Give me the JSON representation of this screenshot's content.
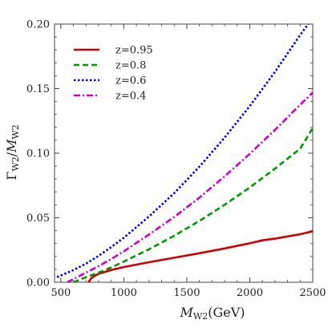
{
  "chart_data": {
    "type": "line",
    "title": "",
    "xlabel_main": "M",
    "xlabel_sub": "W2",
    "xlabel_unit": "(GeV)",
    "ylabel_num": "Γ",
    "ylabel_num_sub": "W2",
    "ylabel_den": "M",
    "ylabel_den_sub": "W2",
    "xlim": [
      450,
      2500
    ],
    "ylim": [
      0,
      0.2
    ],
    "xticks": [
      500,
      1000,
      1500,
      2000,
      2500
    ],
    "xtick_labels": [
      "500",
      "1000",
      "1500",
      "2000",
      "2500"
    ],
    "yticks": [
      0.0,
      0.05,
      0.1,
      0.15,
      0.2
    ],
    "ytick_labels": [
      "0.00",
      "0.05",
      "0.10",
      "0.15",
      "0.20"
    ],
    "grid": false,
    "legend_position": "top-left",
    "series": [
      {
        "name": "z=0.95",
        "color": "#cc0000",
        "dash": "solid",
        "x": [
          720,
          740,
          760,
          800,
          900,
          1000,
          1200,
          1400,
          1600,
          1800,
          2000,
          2100,
          2200,
          2300,
          2400,
          2500
        ],
        "y": [
          0.0,
          0.003,
          0.0045,
          0.0065,
          0.0095,
          0.0118,
          0.0155,
          0.019,
          0.0225,
          0.0262,
          0.0302,
          0.0325,
          0.0338,
          0.0355,
          0.0372,
          0.0395
        ]
      },
      {
        "name": "z=0.8",
        "color": "#009900",
        "dash": "dashed",
        "x": [
          600,
          700,
          800,
          900,
          1000,
          1200,
          1400,
          1600,
          1800,
          2000,
          2200,
          2400,
          2500
        ],
        "y": [
          0.0,
          0.004,
          0.0075,
          0.0115,
          0.016,
          0.0255,
          0.036,
          0.0475,
          0.06,
          0.0735,
          0.088,
          0.1035,
          0.1195
        ]
      },
      {
        "name": "z=0.6",
        "color": "#0000ee",
        "dash": "dotted",
        "x": [
          470,
          600,
          700,
          800,
          900,
          1000,
          1200,
          1400,
          1600,
          1800,
          2000,
          2200,
          2400,
          2500
        ],
        "y": [
          0.004,
          0.0095,
          0.0145,
          0.0205,
          0.0272,
          0.0345,
          0.051,
          0.069,
          0.0895,
          0.112,
          0.1365,
          0.163,
          0.1915,
          0.205
        ]
      },
      {
        "name": "z=0.4",
        "color": "#cc00cc",
        "dash": "dashdot",
        "x": [
          550,
          600,
          700,
          800,
          900,
          1000,
          1200,
          1400,
          1600,
          1800,
          2000,
          2200,
          2400,
          2500
        ],
        "y": [
          0.0,
          0.0025,
          0.0075,
          0.0125,
          0.018,
          0.024,
          0.037,
          0.0505,
          0.0655,
          0.082,
          0.0995,
          0.118,
          0.1375,
          0.147
        ]
      }
    ]
  }
}
